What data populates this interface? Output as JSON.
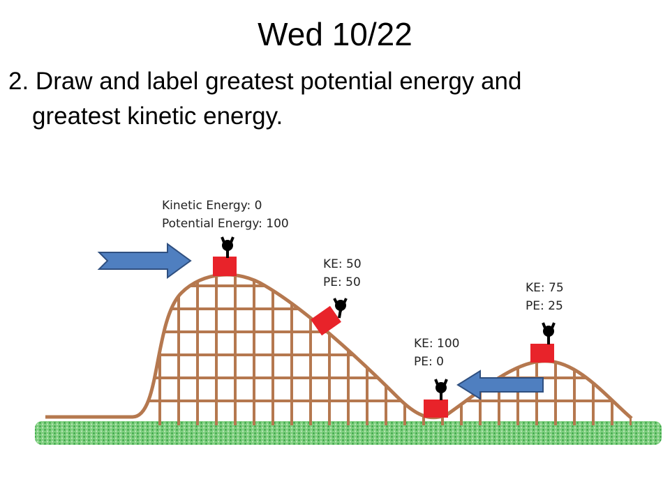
{
  "slide": {
    "title": "Wed 10/22",
    "body": {
      "line1": "2. Draw and label greatest potential energy and",
      "line2": "greatest kinetic energy."
    },
    "diagram": {
      "labels": [
        {
          "line1": "Kinetic Energy: 0",
          "line2": "Potential Energy: 100"
        },
        {
          "line1": "KE: 50",
          "line2": "PE: 50"
        },
        {
          "line1": "KE: 100",
          "line2": "PE: 0"
        },
        {
          "line1": "KE: 75",
          "line2": "PE: 25"
        }
      ]
    }
  }
}
